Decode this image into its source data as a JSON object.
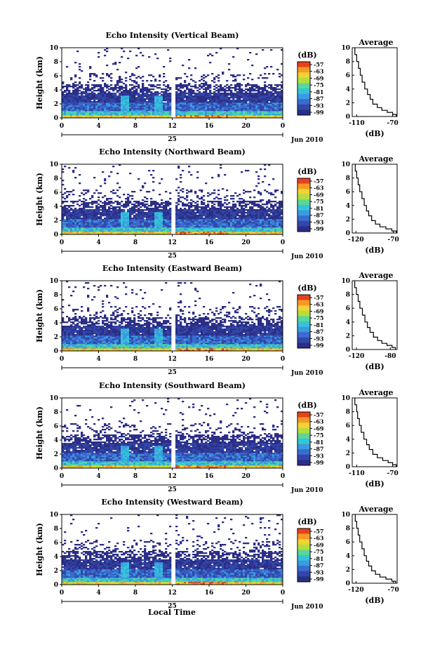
{
  "chart_data": [
    {
      "type": "heatmap",
      "title": "Echo Intensity (Vertical Beam)",
      "ylabel": "Height (km)",
      "yticks": [
        "0",
        "2",
        "4",
        "6",
        "8",
        "10"
      ],
      "xticks": [
        "0",
        "4",
        "8",
        "12",
        "16",
        "20",
        "0"
      ],
      "date_label": "25",
      "month_label": "Jun 2010",
      "colorbar_unit": "(dB)",
      "colorbar_ticks": [
        "-57",
        "-63",
        "-69",
        "-75",
        "-81",
        "-87",
        "-93",
        "-99"
      ],
      "ylim": [
        0,
        10
      ],
      "xlim": [
        0,
        24
      ],
      "profile": {
        "title": "Average",
        "xlabel": "(dB)",
        "xticks": [
          "-110",
          "-70"
        ],
        "xlim": [
          -115,
          -65
        ],
        "yticks": [
          "0",
          "2",
          "4",
          "6",
          "8",
          "10"
        ],
        "points": [
          [
            -66,
            0.3
          ],
          [
            -70,
            0.6
          ],
          [
            -76,
            0.9
          ],
          [
            -82,
            1.3
          ],
          [
            -87,
            1.8
          ],
          [
            -92,
            2.5
          ],
          [
            -95,
            3.2
          ],
          [
            -98,
            4.0
          ],
          [
            -101,
            5.0
          ],
          [
            -104,
            6.0
          ],
          [
            -106,
            7.0
          ],
          [
            -108,
            8.0
          ],
          [
            -110,
            9.0
          ],
          [
            -112,
            10.0
          ]
        ]
      }
    },
    {
      "type": "heatmap",
      "title": "Echo Intensity (Northward Beam)",
      "ylabel": "Height (km)",
      "yticks": [
        "0",
        "2",
        "4",
        "6",
        "8",
        "10"
      ],
      "xticks": [
        "0",
        "4",
        "8",
        "12",
        "16",
        "20",
        "0"
      ],
      "date_label": "25",
      "month_label": "Jun 2010",
      "colorbar_unit": "(dB)",
      "colorbar_ticks": [
        "-57",
        "-63",
        "-69",
        "-75",
        "-81",
        "-87",
        "-93",
        "-99"
      ],
      "ylim": [
        0,
        10
      ],
      "xlim": [
        0,
        24
      ],
      "profile": {
        "title": "Average",
        "xlabel": "(dB)",
        "xticks": [
          "-120",
          "-70"
        ],
        "xlim": [
          -125,
          -65
        ],
        "yticks": [
          "0",
          "2",
          "4",
          "6",
          "8",
          "10"
        ],
        "points": [
          [
            -66,
            0.3
          ],
          [
            -72,
            0.6
          ],
          [
            -80,
            0.9
          ],
          [
            -88,
            1.3
          ],
          [
            -94,
            1.8
          ],
          [
            -99,
            2.5
          ],
          [
            -103,
            3.2
          ],
          [
            -106,
            4.0
          ],
          [
            -109,
            5.0
          ],
          [
            -112,
            6.0
          ],
          [
            -115,
            7.0
          ],
          [
            -117,
            8.0
          ],
          [
            -119,
            9.0
          ],
          [
            -121,
            10.0
          ]
        ]
      }
    },
    {
      "type": "heatmap",
      "title": "Echo Intensity (Eastward Beam)",
      "ylabel": "Height (km)",
      "yticks": [
        "0",
        "2",
        "4",
        "6",
        "8",
        "10"
      ],
      "xticks": [
        "0",
        "4",
        "8",
        "12",
        "16",
        "20",
        "0"
      ],
      "date_label": "25",
      "month_label": "Jun 2010",
      "colorbar_unit": "(dB)",
      "colorbar_ticks": [
        "-57",
        "-63",
        "-69",
        "-75",
        "-81",
        "-87",
        "-93",
        "-99"
      ],
      "ylim": [
        0,
        10
      ],
      "xlim": [
        0,
        24
      ],
      "profile": {
        "title": "Average",
        "xlabel": "(dB)",
        "xticks": [
          "-120",
          "-80"
        ],
        "xlim": [
          -125,
          -72
        ],
        "yticks": [
          "0",
          "2",
          "4",
          "6",
          "8",
          "10"
        ],
        "points": [
          [
            -74,
            0.3
          ],
          [
            -78,
            0.6
          ],
          [
            -84,
            0.9
          ],
          [
            -90,
            1.3
          ],
          [
            -95,
            1.8
          ],
          [
            -100,
            2.5
          ],
          [
            -104,
            3.2
          ],
          [
            -107,
            4.0
          ],
          [
            -110,
            5.0
          ],
          [
            -113,
            6.0
          ],
          [
            -116,
            7.0
          ],
          [
            -118,
            8.0
          ],
          [
            -120,
            9.0
          ],
          [
            -122,
            10.0
          ]
        ]
      }
    },
    {
      "type": "heatmap",
      "title": "Echo Intensity (Southward Beam)",
      "ylabel": "Height (km)",
      "yticks": [
        "0",
        "2",
        "4",
        "6",
        "8",
        "10"
      ],
      "xticks": [
        "0",
        "4",
        "8",
        "12",
        "16",
        "20",
        "0"
      ],
      "date_label": "25",
      "month_label": "Jun 2010",
      "colorbar_unit": "(dB)",
      "colorbar_ticks": [
        "-57",
        "-63",
        "-69",
        "-75",
        "-81",
        "-87",
        "-93",
        "-99"
      ],
      "ylim": [
        0,
        10
      ],
      "xlim": [
        0,
        24
      ],
      "profile": {
        "title": "Average",
        "xlabel": "(dB)",
        "xticks": [
          "-110",
          "-70"
        ],
        "xlim": [
          -115,
          -65
        ],
        "yticks": [
          "0",
          "2",
          "4",
          "6",
          "8",
          "10"
        ],
        "points": [
          [
            -66,
            0.3
          ],
          [
            -70,
            0.6
          ],
          [
            -75,
            0.9
          ],
          [
            -81,
            1.3
          ],
          [
            -87,
            1.8
          ],
          [
            -92,
            2.5
          ],
          [
            -96,
            3.2
          ],
          [
            -99,
            4.0
          ],
          [
            -102,
            5.0
          ],
          [
            -105,
            6.0
          ],
          [
            -107,
            7.0
          ],
          [
            -109,
            8.0
          ],
          [
            -110,
            9.0
          ],
          [
            -112,
            10.0
          ]
        ]
      }
    },
    {
      "type": "heatmap",
      "title": "Echo Intensity (Westward Beam)",
      "ylabel": "Height (km)",
      "yticks": [
        "0",
        "2",
        "4",
        "6",
        "8",
        "10"
      ],
      "xticks": [
        "0",
        "4",
        "8",
        "12",
        "16",
        "20",
        "0"
      ],
      "date_label": "25",
      "month_label": "Jun 2010",
      "colorbar_unit": "(dB)",
      "colorbar_ticks": [
        "-57",
        "-63",
        "-69",
        "-75",
        "-81",
        "-87",
        "-93",
        "-99"
      ],
      "ylim": [
        0,
        10
      ],
      "xlim": [
        0,
        24
      ],
      "profile": {
        "title": "Average",
        "xlabel": "(dB)",
        "xticks": [
          "-120",
          "-70"
        ],
        "xlim": [
          -125,
          -65
        ],
        "yticks": [
          "0",
          "2",
          "4",
          "6",
          "8",
          "10"
        ],
        "points": [
          [
            -67,
            0.3
          ],
          [
            -72,
            0.6
          ],
          [
            -80,
            0.9
          ],
          [
            -88,
            1.3
          ],
          [
            -94,
            1.8
          ],
          [
            -99,
            2.5
          ],
          [
            -103,
            3.2
          ],
          [
            -106,
            4.0
          ],
          [
            -109,
            5.0
          ],
          [
            -112,
            6.0
          ],
          [
            -115,
            7.0
          ],
          [
            -117,
            8.0
          ],
          [
            -119,
            9.0
          ],
          [
            -121,
            10.0
          ]
        ]
      }
    }
  ],
  "footer": {
    "xlabel": "Local Time"
  },
  "colors": {
    "colormap": [
      "#2b2e86",
      "#3247a8",
      "#3a6bd0",
      "#3a9be0",
      "#33c4d8",
      "#5ad69a",
      "#b5de3d",
      "#f2d234",
      "#f79a25",
      "#e8421c"
    ]
  }
}
